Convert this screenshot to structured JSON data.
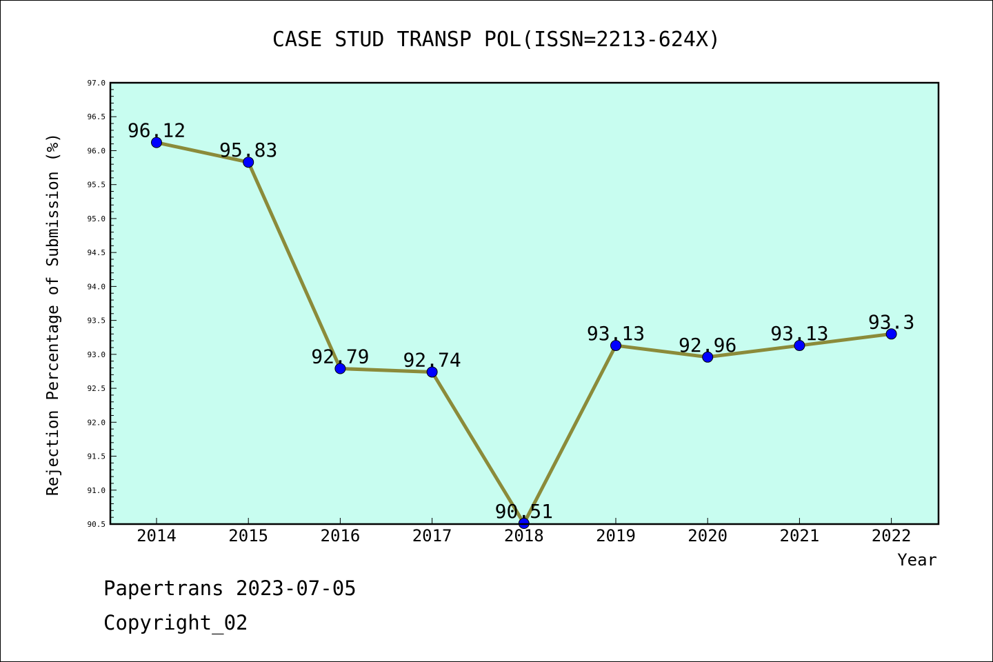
{
  "chart_data": {
    "type": "line",
    "title": "CASE STUD TRANSP POL(ISSN=2213-624X)",
    "xlabel": "Year",
    "ylabel": "Rejection Percentage of Submission (%)",
    "categories": [
      "2014",
      "2015",
      "2016",
      "2017",
      "2018",
      "2019",
      "2020",
      "2021",
      "2022"
    ],
    "series": [
      {
        "values": [
          96.12,
          95.83,
          92.79,
          92.74,
          90.51,
          93.13,
          92.96,
          93.13,
          93.3
        ],
        "data_labels": [
          "96.12",
          "95.83",
          "92.79",
          "92.74",
          "90.51",
          "93.13",
          "92.96",
          "93.13",
          "93.3"
        ]
      }
    ],
    "ylim": [
      90.5,
      97.0
    ],
    "yticks": [
      "90.5",
      "91.0",
      "91.5",
      "92.0",
      "92.5",
      "93.0",
      "93.5",
      "94.0",
      "94.5",
      "95.0",
      "95.5",
      "96.0",
      "96.5",
      "97.0"
    ],
    "grid": false,
    "legend": "none",
    "colors": {
      "plot_background": "#c8fdf0",
      "line": "#8b8b3a",
      "marker": "#0000ff"
    }
  },
  "footer": {
    "line1": "Papertrans 2023-07-05",
    "line2": "Copyright_02"
  }
}
